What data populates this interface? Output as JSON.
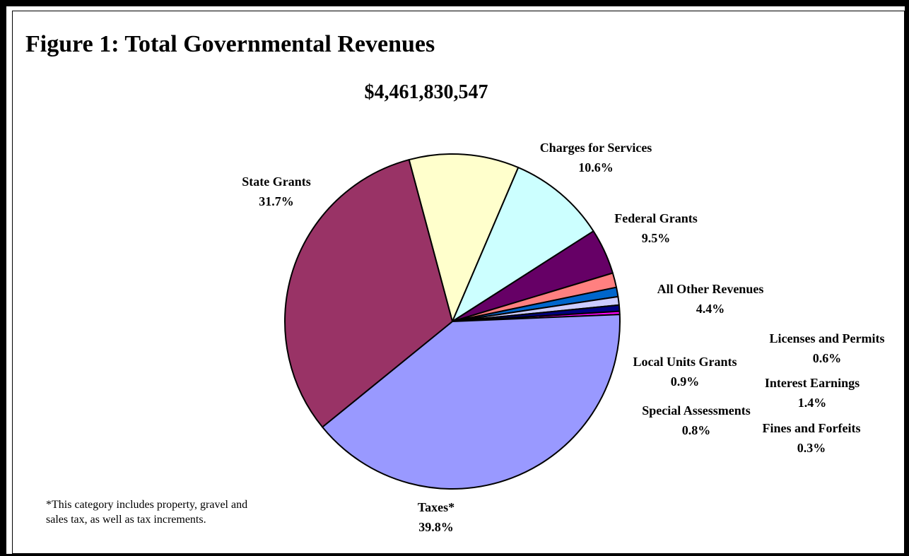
{
  "title": "Figure 1: Total Governmental Revenues",
  "total": "$4,461,830,547",
  "footnote_line1": "*This category includes property, gravel and",
  "footnote_line2": "sales tax, as well as tax increments.",
  "chart_data": {
    "type": "pie",
    "title": "Figure 1: Total Governmental Revenues",
    "subtitle": "$4,461,830,547",
    "start_angle_deg": 345,
    "direction": "clockwise",
    "slices": [
      {
        "label": "Charges for Services",
        "value": 10.6,
        "value_label": "10.6%",
        "color": "#ffffcc"
      },
      {
        "label": "Federal Grants",
        "value": 9.5,
        "value_label": "9.5%",
        "color": "#ccffff"
      },
      {
        "label": "All Other Revenues",
        "value": 4.4,
        "value_label": "4.4%",
        "color": "#660066"
      },
      {
        "label": "Interest Earnings",
        "value": 1.4,
        "value_label": "1.4%",
        "color": "#ff8080"
      },
      {
        "label": "Local Units Grants",
        "value": 0.9,
        "value_label": "0.9%",
        "color": "#0066cc"
      },
      {
        "label": "Special Assessments",
        "value": 0.8,
        "value_label": "0.8%",
        "color": "#ccccff"
      },
      {
        "label": "Licenses and Permits",
        "value": 0.6,
        "value_label": "0.6%",
        "color": "#000080"
      },
      {
        "label": "Fines and Forfeits",
        "value": 0.3,
        "value_label": "0.3%",
        "color": "#ff00ff"
      },
      {
        "label": "Taxes*",
        "value": 39.8,
        "value_label": "39.8%",
        "color": "#9999ff"
      },
      {
        "label": "State Grants",
        "value": 31.7,
        "value_label": "31.7%",
        "color": "#993366"
      }
    ]
  }
}
